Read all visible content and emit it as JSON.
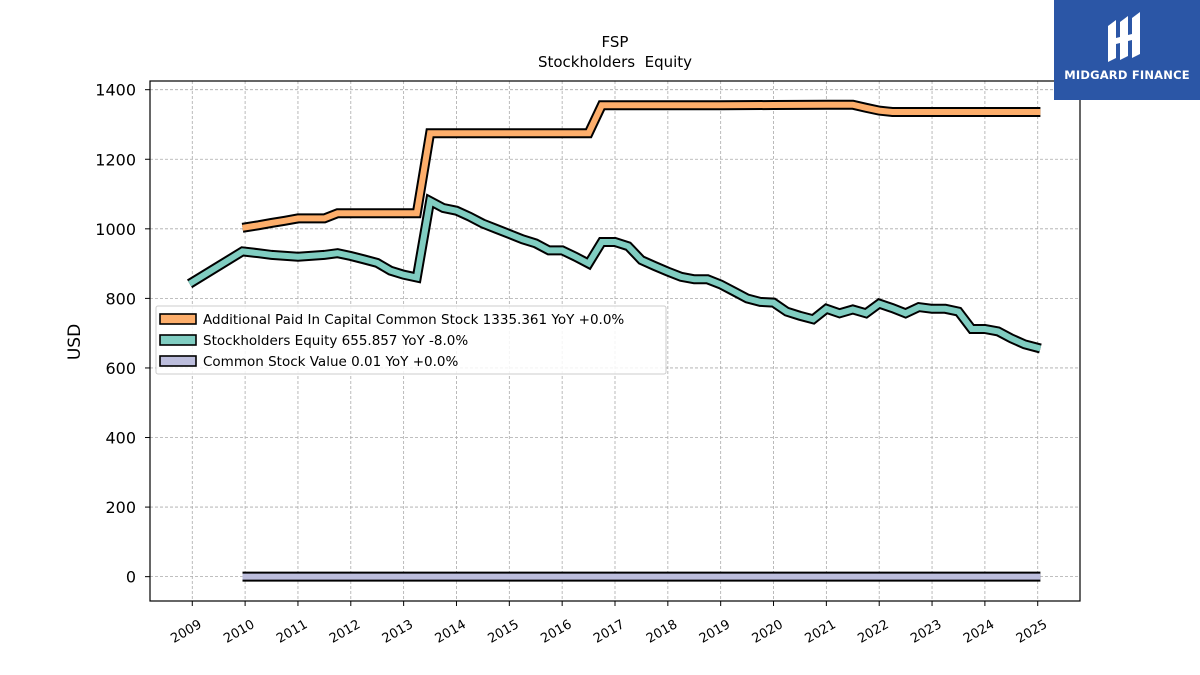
{
  "chart_data": {
    "type": "line",
    "title": "FSP",
    "subtitle": "Stockholders  Equity",
    "ylabel": "USD",
    "xlabel": "",
    "ylim": [
      -70,
      1425
    ],
    "xlim": [
      2008.2,
      2025.8
    ],
    "yticks": [
      0,
      200,
      400,
      600,
      800,
      1000,
      1200,
      1400
    ],
    "xticks": [
      "2009",
      "2010",
      "2011",
      "2012",
      "2013",
      "2014",
      "2015",
      "2016",
      "2017",
      "2018",
      "2019",
      "2020",
      "2021",
      "2022",
      "2023",
      "2024",
      "2025"
    ],
    "grid": true,
    "legend_position": "center-left",
    "series": [
      {
        "name": "Additional Paid In Capital Common Stock  1335.361 YoY +0.0%",
        "color": "#fdae6b",
        "points": [
          [
            2009.95,
            1003
          ],
          [
            2010.25,
            1010
          ],
          [
            2010.5,
            1017
          ],
          [
            2010.75,
            1023
          ],
          [
            2011.0,
            1030
          ],
          [
            2011.25,
            1030
          ],
          [
            2011.5,
            1030
          ],
          [
            2011.75,
            1045
          ],
          [
            2012.0,
            1045
          ],
          [
            2012.25,
            1045
          ],
          [
            2012.5,
            1045
          ],
          [
            2012.75,
            1045
          ],
          [
            2013.0,
            1045
          ],
          [
            2013.25,
            1045
          ],
          [
            2013.5,
            1275
          ],
          [
            2013.75,
            1275
          ],
          [
            2014.0,
            1275
          ],
          [
            2014.5,
            1275
          ],
          [
            2015.0,
            1275
          ],
          [
            2015.5,
            1275
          ],
          [
            2016.0,
            1275
          ],
          [
            2016.5,
            1275
          ],
          [
            2016.75,
            1355
          ],
          [
            2017.0,
            1355
          ],
          [
            2018.0,
            1355
          ],
          [
            2019.0,
            1355
          ],
          [
            2020.0,
            1356
          ],
          [
            2021.0,
            1357
          ],
          [
            2021.5,
            1357
          ],
          [
            2021.75,
            1348
          ],
          [
            2022.0,
            1340
          ],
          [
            2022.25,
            1336
          ],
          [
            2022.5,
            1336
          ],
          [
            2023.0,
            1336
          ],
          [
            2024.0,
            1336
          ],
          [
            2025.05,
            1336
          ]
        ]
      },
      {
        "name": "Stockholders Equity  655.857 YoY -8.0%",
        "color": "#80cdc1",
        "points": [
          [
            2008.95,
            842
          ],
          [
            2009.95,
            935
          ],
          [
            2010.25,
            930
          ],
          [
            2010.5,
            925
          ],
          [
            2011.0,
            920
          ],
          [
            2011.5,
            925
          ],
          [
            2011.75,
            930
          ],
          [
            2012.0,
            922
          ],
          [
            2012.25,
            912
          ],
          [
            2012.5,
            902
          ],
          [
            2012.75,
            880
          ],
          [
            2013.0,
            868
          ],
          [
            2013.25,
            860
          ],
          [
            2013.5,
            1080
          ],
          [
            2013.75,
            1060
          ],
          [
            2014.0,
            1052
          ],
          [
            2014.25,
            1035
          ],
          [
            2014.5,
            1015
          ],
          [
            2014.75,
            1000
          ],
          [
            2015.0,
            985
          ],
          [
            2015.25,
            970
          ],
          [
            2015.5,
            958
          ],
          [
            2015.75,
            938
          ],
          [
            2016.0,
            938
          ],
          [
            2016.25,
            920
          ],
          [
            2016.5,
            900
          ],
          [
            2016.75,
            962
          ],
          [
            2017.0,
            962
          ],
          [
            2017.25,
            950
          ],
          [
            2017.5,
            910
          ],
          [
            2017.75,
            893
          ],
          [
            2018.0,
            877
          ],
          [
            2018.25,
            862
          ],
          [
            2018.5,
            855
          ],
          [
            2018.75,
            855
          ],
          [
            2019.0,
            840
          ],
          [
            2019.25,
            820
          ],
          [
            2019.5,
            800
          ],
          [
            2019.75,
            790
          ],
          [
            2020.0,
            788
          ],
          [
            2020.25,
            762
          ],
          [
            2020.5,
            750
          ],
          [
            2020.75,
            740
          ],
          [
            2021.0,
            770
          ],
          [
            2021.25,
            757
          ],
          [
            2021.5,
            768
          ],
          [
            2021.75,
            757
          ],
          [
            2022.0,
            785
          ],
          [
            2022.25,
            772
          ],
          [
            2022.5,
            757
          ],
          [
            2022.75,
            775
          ],
          [
            2023.0,
            770
          ],
          [
            2023.25,
            770
          ],
          [
            2023.5,
            762
          ],
          [
            2023.75,
            712
          ],
          [
            2024.0,
            712
          ],
          [
            2024.25,
            705
          ],
          [
            2024.5,
            685
          ],
          [
            2024.75,
            668
          ],
          [
            2025.05,
            656
          ]
        ]
      },
      {
        "name": "Common Stock Value  0.01 YoY +0.0%",
        "color": "#bcbddc",
        "points": [
          [
            2009.95,
            0.01
          ],
          [
            2025.05,
            0.01
          ]
        ]
      }
    ]
  },
  "logo": {
    "text": "MIDGARD FINANCE",
    "background": "#2b56a6"
  }
}
